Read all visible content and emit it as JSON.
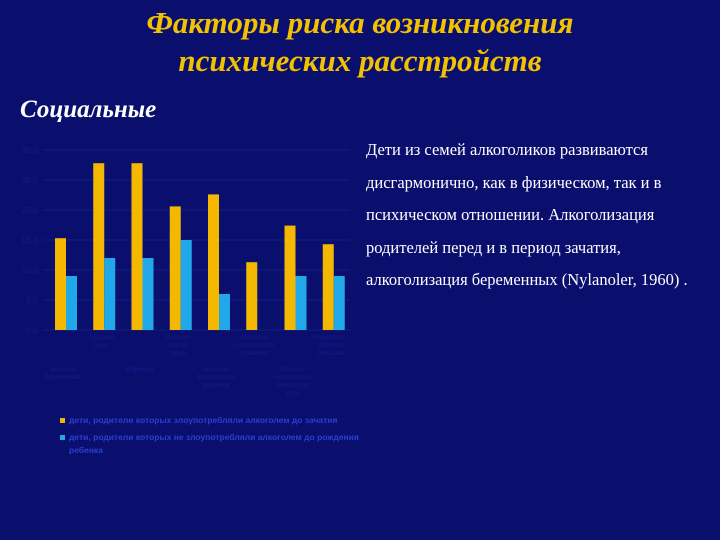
{
  "slide": {
    "title_line1": "Факторы риска возникновения",
    "title_line2": "психических расстройств",
    "subtitle": "Социальные",
    "paragraph": "Дети из семей алкоголиков развиваются дисгармонично, как в физическом, так и в психическом отношении. Алкоголизация родителей перед и в период зачатия, алкоголизация беременных (Nylanoler, 1960) ."
  },
  "colors": {
    "background": "#0a0f6e",
    "title": "#f2c100",
    "series1": "#f5b800",
    "series2": "#20a8e8",
    "axis_text": "#1a1a8a",
    "legend_text": "#2a3fd0"
  },
  "chart_data": {
    "type": "bar",
    "categories": [
      "токсикоз беременных",
      "Трудные роды",
      "асфиксия",
      "Позднее взятие груди",
      "задержка физического развития",
      "задержка психического развития",
      "Тяжелые соматические болезни до года",
      "Инфекции с потерей сознания"
    ],
    "series": [
      {
        "name": "дети, родители которых злоупотребляли алкоголем до зачатия",
        "values": [
          15.3,
          27.8,
          27.8,
          20.6,
          22.6,
          11.3,
          17.4,
          14.3
        ]
      },
      {
        "name": "дети, родители которых не злоупотребляли алкоголем до рождения ребенка",
        "values": [
          9.0,
          12.0,
          12.0,
          15.0,
          6.0,
          0,
          9.0,
          9.0
        ]
      }
    ],
    "ylim": [
      0,
      30
    ],
    "yticks": [
      "0,0",
      "5,0",
      "10,0",
      "15,0",
      "20,0",
      "25,0",
      "30,0"
    ],
    "grid": true,
    "legend_position": "bottom"
  }
}
